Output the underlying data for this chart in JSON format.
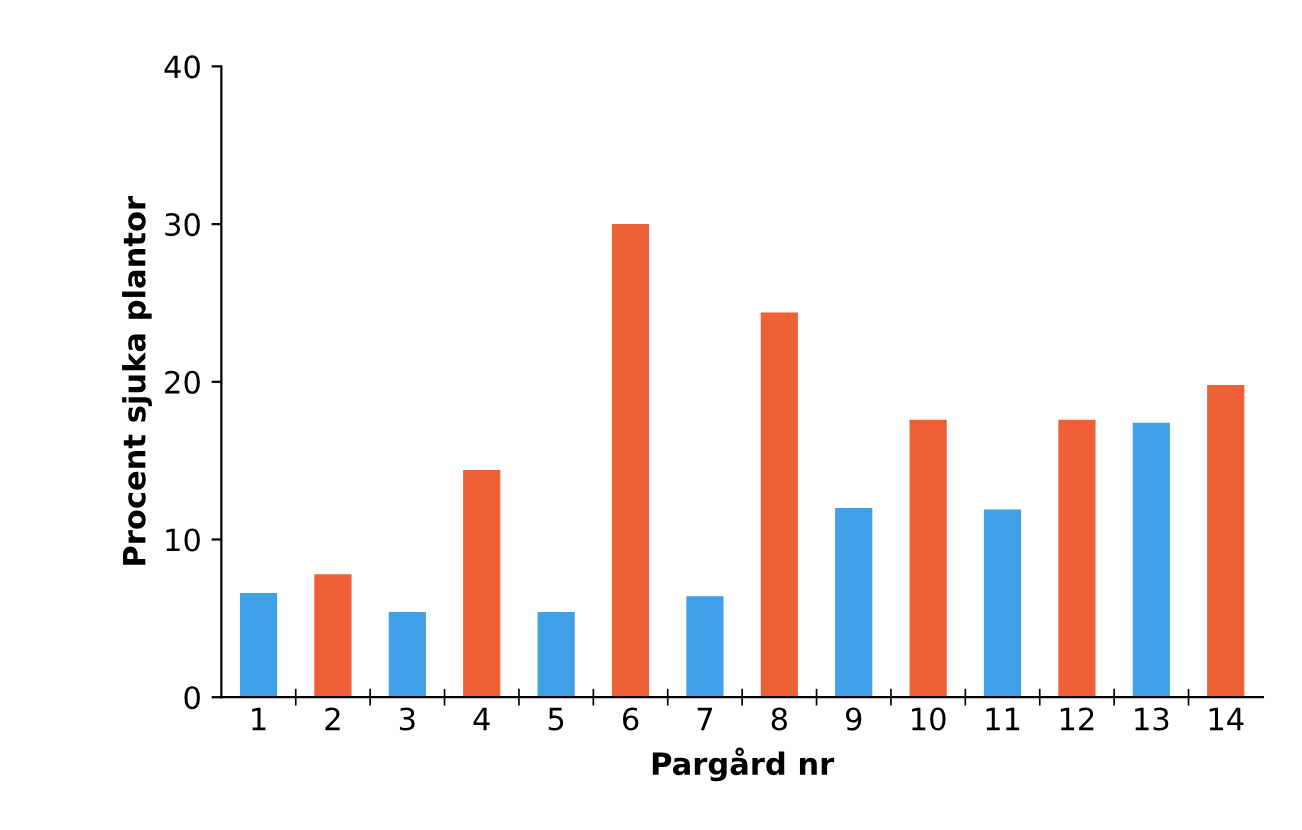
{
  "chart_data": {
    "type": "bar",
    "xlabel": "Pargård nr",
    "ylabel": "Procent sjuka plantor",
    "categories": [
      "1",
      "2",
      "3",
      "4",
      "5",
      "6",
      "7",
      "8",
      "9",
      "10",
      "11",
      "12",
      "13",
      "14"
    ],
    "values": [
      6.6,
      7.8,
      5.4,
      14.4,
      5.4,
      30.0,
      6.4,
      24.4,
      12.0,
      17.6,
      11.9,
      17.6,
      17.4,
      19.8
    ],
    "colors": [
      "#3fa0e8",
      "#ee6035",
      "#3fa0e8",
      "#ee6035",
      "#3fa0e8",
      "#ee6035",
      "#3fa0e8",
      "#ee6035",
      "#3fa0e8",
      "#ee6035",
      "#3fa0e8",
      "#ee6035",
      "#3fa0e8",
      "#ee6035"
    ],
    "ylim": [
      0,
      40
    ],
    "yticks": [
      0,
      10,
      20,
      30,
      40
    ],
    "grid": false,
    "legend": false
  }
}
